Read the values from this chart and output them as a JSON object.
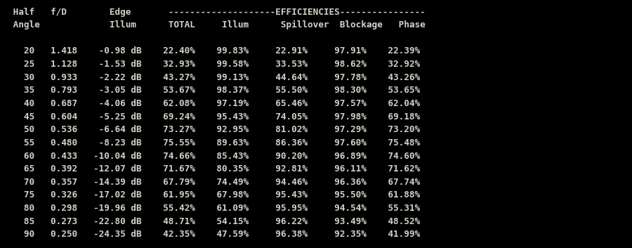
{
  "background_color": "#000000",
  "text_color": "#d4d0c8",
  "figsize": [
    9.0,
    3.53
  ],
  "dpi": 100,
  "font_size": 9.2,
  "lines": [
    " Half   f/D        Edge       --------------------EFFICIENCIES----------------",
    " Angle             Illum      TOTAL     Illum      Spillover  Blockage   Phase",
    "",
    "   20   1.418    -0.98 dB    22.40%    99.83%     22.91%     97.91%    22.39%",
    "   25   1.128    -1.53 dB    32.93%    99.58%     33.53%     98.62%    32.92%",
    "   30   0.933    -2.22 dB    43.27%    99.13%     44.64%     97.78%    43.26%",
    "   35   0.793    -3.05 dB    53.67%    98.37%     55.50%     98.30%    53.65%",
    "   40   0.687    -4.06 dB    62.08%    97.19%     65.46%     97.57%    62.04%",
    "   45   0.604    -5.25 dB    69.24%    95.43%     74.05%     97.98%    69.18%",
    "   50   0.536    -6.64 dB    73.27%    92.95%     81.02%     97.29%    73.20%",
    "   55   0.480    -8.23 dB    75.55%    89.63%     86.36%     97.60%    75.48%",
    "   60   0.433   -10.04 dB    74.66%    85.43%     90.20%     96.89%    74.60%",
    "   65   0.392   -12.07 dB    71.67%    80.35%     92.81%     96.11%    71.62%",
    "   70   0.357   -14.39 dB    67.79%    74.49%     94.46%     96.36%    67.74%",
    "   75   0.326   -17.02 dB    61.95%    67.98%     95.43%     95.50%    61.88%",
    "   80   0.298   -19.96 dB    55.42%    61.09%     95.95%     94.54%    55.31%",
    "   85   0.273   -22.80 dB    48.71%    54.15%     96.22%     93.49%    48.52%",
    "   90   0.250   -24.35 dB    42.35%    47.59%     96.38%     92.35%    41.99%"
  ]
}
